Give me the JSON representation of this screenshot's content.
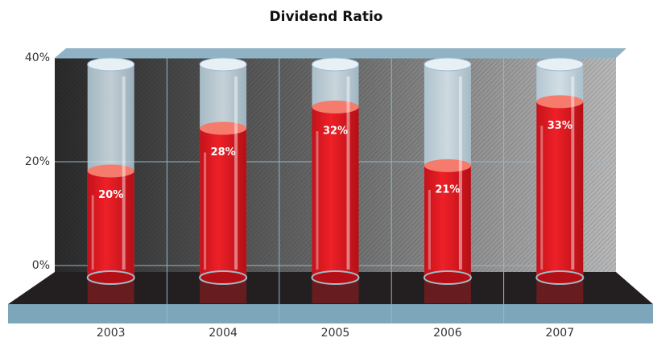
{
  "chart_data": {
    "type": "bar",
    "title": "Dividend Ratio",
    "categories": [
      "2003",
      "2004",
      "2005",
      "2006",
      "2007"
    ],
    "values": [
      20,
      28,
      32,
      21,
      33
    ],
    "value_labels": [
      "20%",
      "28%",
      "32%",
      "21%",
      "33%"
    ],
    "color": "#e8191f",
    "ylim": [
      0,
      40
    ],
    "yticks": [
      {
        "value": 0,
        "label": "0%"
      },
      {
        "value": 20,
        "label": "20%"
      },
      {
        "value": 40,
        "label": "40%"
      }
    ],
    "grid": true
  }
}
